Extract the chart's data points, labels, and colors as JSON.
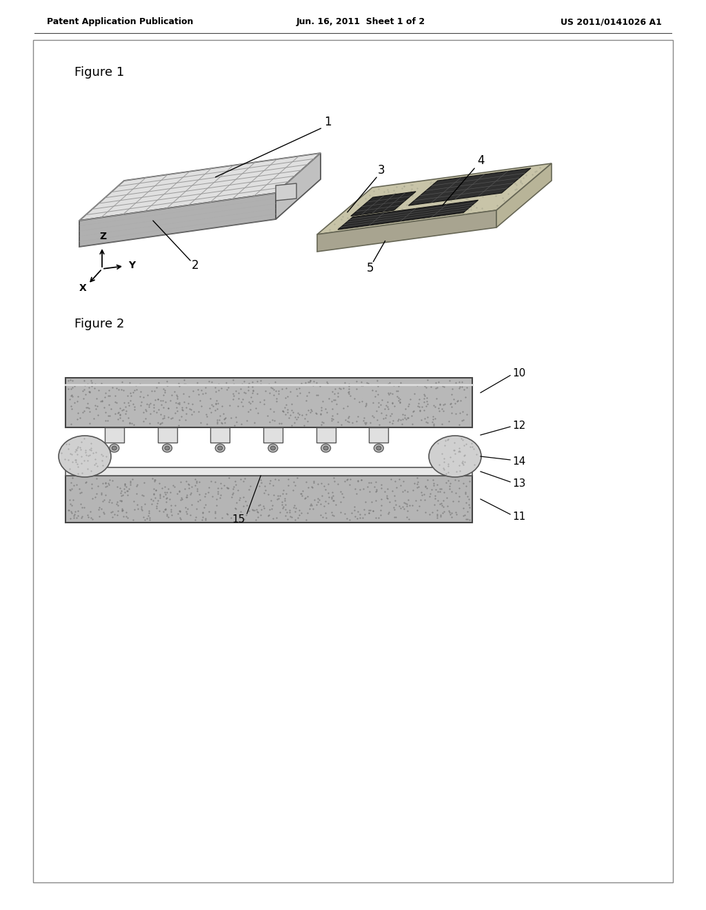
{
  "bg_color": "#ffffff",
  "header_left": "Patent Application Publication",
  "header_center": "Jun. 16, 2011  Sheet 1 of 2",
  "header_right": "US 2011/0141026 A1",
  "fig1_label": "Figure 1",
  "fig2_label": "Figure 2",
  "text_color": "#000000",
  "panel_top_color": "#e0e0e0",
  "panel_front_color": "#b0b0b0",
  "panel_side_color": "#c8c8c8",
  "grid_line_color": "#888888",
  "pcb_top_color": "#c8c8c0",
  "pcb_front_color": "#a8a898",
  "pcb_side_color": "#989880",
  "dark_patch_color": "#282828",
  "medium_patch_color": "#404040",
  "connector_color": "#cccccc",
  "fig2_top_color": "#bbbbbb",
  "fig2_bump_color": "#d8d8d8",
  "fig2_oval_color": "#c0c0c0",
  "fig2_thin_color": "#eeeeee",
  "fig2_lower_color": "#b8b8b8",
  "fig2_stipple_color": "#777777"
}
